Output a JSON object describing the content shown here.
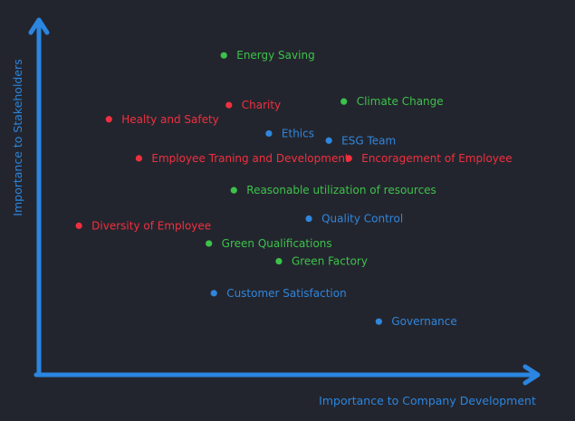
{
  "colors": {
    "background": "#23252e",
    "axis": "#2a86e0",
    "social": "#f0303f",
    "environment": "#3cc24a",
    "governance": "#2f86dc"
  },
  "chart_data": {
    "type": "scatter",
    "title": "",
    "xlabel": "Importance to Company Development",
    "ylabel": "Importance to Stakeholders",
    "xlim": [
      0,
      100
    ],
    "ylim": [
      0,
      100
    ],
    "grid": false,
    "legend": "none",
    "points": [
      {
        "label": "Energy Saving",
        "x": 37,
        "y": 90,
        "color": "#3cc24a"
      },
      {
        "label": "Charity",
        "x": 38,
        "y": 76,
        "color": "#f0303f"
      },
      {
        "label": "Climate Change",
        "x": 61,
        "y": 77,
        "color": "#3cc24a"
      },
      {
        "label": "Healty and Safety",
        "x": 14,
        "y": 72,
        "color": "#f0303f"
      },
      {
        "label": "Ethics",
        "x": 46,
        "y": 68,
        "color": "#2f86dc"
      },
      {
        "label": "ESG Team",
        "x": 58,
        "y": 66,
        "color": "#2f86dc"
      },
      {
        "label": "Employee Traning and Development",
        "x": 20,
        "y": 61,
        "color": "#f0303f"
      },
      {
        "label": "Encoragement of Employee",
        "x": 62,
        "y": 61,
        "color": "#f0303f"
      },
      {
        "label": "Reasonable utilization of resources",
        "x": 39,
        "y": 52,
        "color": "#3cc24a"
      },
      {
        "label": "Quality Control",
        "x": 54,
        "y": 44,
        "color": "#2f86dc"
      },
      {
        "label": "Diversity of Employee",
        "x": 8,
        "y": 42,
        "color": "#f0303f"
      },
      {
        "label": "Green Qualifications",
        "x": 34,
        "y": 37,
        "color": "#3cc24a"
      },
      {
        "label": "Green Factory",
        "x": 48,
        "y": 32,
        "color": "#3cc24a"
      },
      {
        "label": "Customer Satisfaction",
        "x": 35,
        "y": 23,
        "color": "#2f86dc"
      },
      {
        "label": "Governance",
        "x": 68,
        "y": 15,
        "color": "#2f86dc"
      }
    ]
  }
}
